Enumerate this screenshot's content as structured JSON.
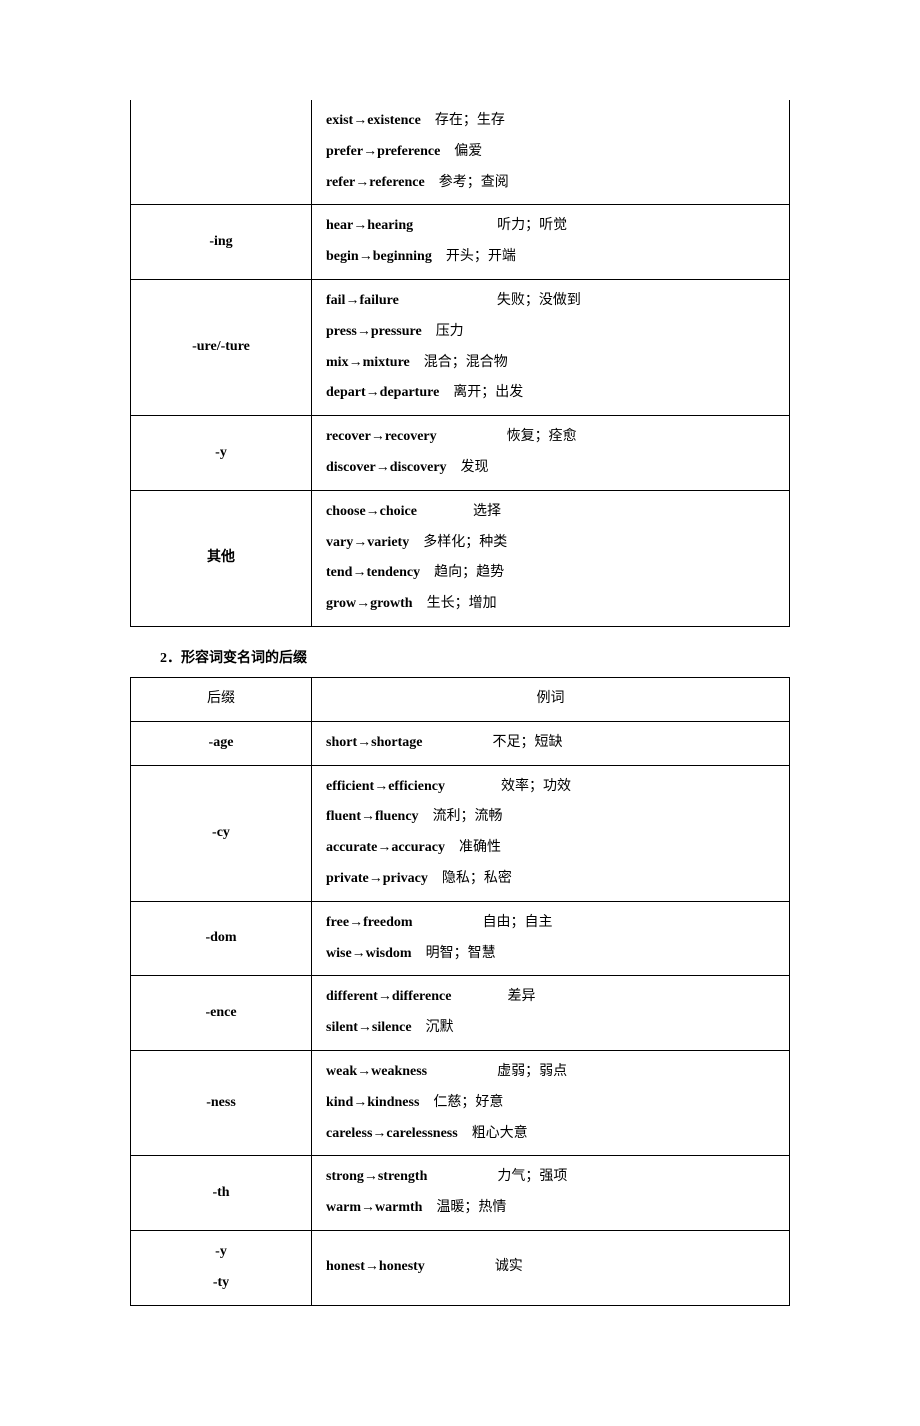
{
  "table1": {
    "rows": [
      {
        "suffix": "",
        "entries": [
          {
            "from": "exist",
            "to": "existence",
            "gap": "　",
            "meaning": "存在；生存"
          },
          {
            "from": "prefer",
            "to": "preference",
            "gap": "　",
            "meaning": "偏爱"
          },
          {
            "from": "refer",
            "to": "reference",
            "gap": "　",
            "meaning": "参考；查阅"
          }
        ]
      },
      {
        "suffix": "-ing",
        "entries": [
          {
            "from": "hear",
            "to": "hearing",
            "gap": "　　　　　　",
            "meaning": "听力；听觉"
          },
          {
            "from": "begin",
            "to": "beginning",
            "gap": "　",
            "meaning": "开头；开端"
          }
        ]
      },
      {
        "suffix": "-ure/-ture",
        "entries": [
          {
            "from": "fail",
            "to": "failure",
            "gap": "　　　　　　　",
            "meaning": "失败；没做到"
          },
          {
            "from": "press",
            "to": "pressure",
            "gap": "　",
            "meaning": "压力"
          },
          {
            "from": "mix",
            "to": "mixture",
            "gap": "　",
            "meaning": "混合；混合物"
          },
          {
            "from": "depart",
            "to": "departure",
            "gap": "　",
            "meaning": "离开；出发"
          }
        ]
      },
      {
        "suffix": "-y",
        "entries": [
          {
            "from": "recover",
            "to": "recovery",
            "gap": "　　　　　",
            "meaning": "恢复；痊愈"
          },
          {
            "from": "discover",
            "to": "discovery",
            "gap": "　",
            "meaning": "发现"
          }
        ]
      },
      {
        "suffix": "其他",
        "entries": [
          {
            "from": "choose",
            "to": "choice",
            "gap": "　　　　",
            "meaning": "选择"
          },
          {
            "from": "vary",
            "to": "variety",
            "gap": "　",
            "meaning": "多样化；种类"
          },
          {
            "from": "tend",
            "to": "tendency",
            "gap": "　",
            "meaning": "趋向；趋势"
          },
          {
            "from": "grow",
            "to": "growth",
            "gap": "　",
            "meaning": "生长；增加"
          }
        ]
      }
    ]
  },
  "section2_title": "2．形容词变名词的后缀",
  "table2": {
    "header": {
      "col1": "后缀",
      "col2": "例词"
    },
    "rows": [
      {
        "suffix": "-age",
        "entries": [
          {
            "from": "short",
            "to": "shortage",
            "gap": "　　　　　",
            "meaning": "不足；短缺"
          }
        ]
      },
      {
        "suffix": "-cy",
        "entries": [
          {
            "from": "efficient",
            "to": "efficiency",
            "gap": "　　　　",
            "meaning": "效率；功效"
          },
          {
            "from": "fluent",
            "to": "fluency",
            "gap": "　",
            "meaning": "流利；流畅"
          },
          {
            "from": "accurate",
            "to": "accuracy",
            "gap": "　",
            "meaning": "准确性"
          },
          {
            "from": "private",
            "to": "privacy",
            "gap": "　",
            "meaning": "隐私；私密"
          }
        ]
      },
      {
        "suffix": "-dom",
        "entries": [
          {
            "from": "free",
            "to": "freedom",
            "gap": "　　　　　",
            "meaning": "自由；自主"
          },
          {
            "from": "wise",
            "to": "wisdom",
            "gap": "　",
            "meaning": "明智；智慧"
          }
        ]
      },
      {
        "suffix": "-ence",
        "entries": [
          {
            "from": "different",
            "to": "difference",
            "gap": "　　　　",
            "meaning": "差异"
          },
          {
            "from": "silent",
            "to": "silence",
            "gap": "　",
            "meaning": "沉默"
          }
        ]
      },
      {
        "suffix": "-ness",
        "entries": [
          {
            "from": "weak",
            "to": "weakness",
            "gap": "　　　　　",
            "meaning": "虚弱；弱点"
          },
          {
            "from": "kind",
            "to": "kindness",
            "gap": "　",
            "meaning": "仁慈；好意"
          },
          {
            "from": "careless",
            "to": "carelessness",
            "gap": "　",
            "meaning": "粗心大意"
          }
        ]
      },
      {
        "suffix": "-th",
        "entries": [
          {
            "from": "strong",
            "to": "strength",
            "gap": "　　　　　",
            "meaning": "力气；强项"
          },
          {
            "from": "warm",
            "to": "warmth",
            "gap": "　",
            "meaning": "温暖；热情"
          }
        ]
      },
      {
        "suffix": "-y\n-ty",
        "entries": [
          {
            "from": "honest",
            "to": "honesty",
            "gap": "　　　　　",
            "meaning": "诚实"
          }
        ]
      }
    ]
  }
}
